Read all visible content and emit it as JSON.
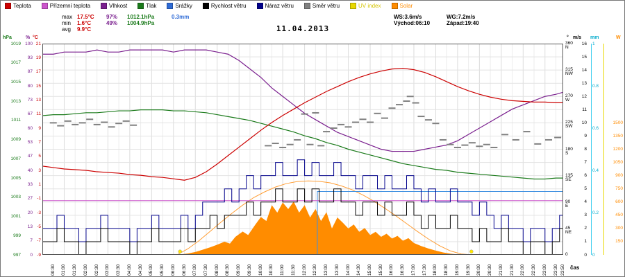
{
  "title": "11.04.2013",
  "legend": {
    "items": [
      {
        "label": "Teplota",
        "color": "#cc0000",
        "label_color": "#000000"
      },
      {
        "label": "Přízemní teplota",
        "color": "#cc55cc",
        "label_color": "#000000"
      },
      {
        "label": "Vlhkost",
        "color": "#7a1f8e",
        "label_color": "#000000"
      },
      {
        "label": "Tlak",
        "color": "#1a7a1a",
        "label_color": "#000000"
      },
      {
        "label": "Srážky",
        "color": "#2e6bd6",
        "label_color": "#000000"
      },
      {
        "label": "Rychlost větru",
        "color": "#000000",
        "label_color": "#000000"
      },
      {
        "label": "Náraz větru",
        "color": "#00008b",
        "label_color": "#000000"
      },
      {
        "label": "Směr větru",
        "color": "#808080",
        "label_color": "#000000"
      },
      {
        "label": "UV index",
        "color": "#e8d800",
        "label_color": "#d4c400"
      },
      {
        "label": "Solar",
        "color": "#ff8c00",
        "label_color": "#ff8c00"
      }
    ]
  },
  "stats": {
    "max_label": "max",
    "max_temp": "17.5°C",
    "max_hum": "97%",
    "max_pres": "1012.1hPa",
    "max_rain": "0.3mm",
    "min_label": "min",
    "min_temp": "1.6°C",
    "min_hum": "49%",
    "min_pres": "1004.9hPa",
    "avg_label": "avg",
    "avg_temp": "9.9°C",
    "ws": "WS:3.6m/s",
    "wg": "WG:7.2m/s",
    "sunrise": "Východ:06:10",
    "sunset": "Západ:19:40"
  },
  "axes": {
    "hpa_header": "hPa",
    "pct_header": "%",
    "c_header": "°C",
    "dir_header": "°",
    "ms_header": "m/s",
    "mm_header": "mm",
    "w_header": "W",
    "cas": "čas",
    "hpa_labels": [
      "1019",
      "1017",
      "1015",
      "1013",
      "1011",
      "1009",
      "1007",
      "1005",
      "1003",
      "1001",
      "999",
      "997"
    ],
    "pct_labels": [
      "100",
      "93",
      "87",
      "80",
      "73",
      "67",
      "60",
      "53",
      "47",
      "40",
      "33",
      "27",
      "20",
      "13",
      "7",
      "0"
    ],
    "c_labels": [
      "21",
      "19",
      "17",
      "15",
      "13",
      "11",
      "9",
      "7",
      "5",
      "3",
      "1",
      "-1",
      "-3",
      "-5",
      "-7",
      "-9"
    ],
    "dir_labels": [
      {
        "deg": "360",
        "pt": "N"
      },
      {
        "deg": "315",
        "pt": "NW"
      },
      {
        "deg": "270",
        "pt": "W"
      },
      {
        "deg": "225",
        "pt": "SW"
      },
      {
        "deg": "180",
        "pt": "S"
      },
      {
        "deg": "135",
        "pt": "SE"
      },
      {
        "deg": "90",
        "pt": "E"
      },
      {
        "deg": "45",
        "pt": "NE"
      },
      {
        "deg": "0",
        "pt": ""
      }
    ],
    "ms_labels": [
      "16",
      "15",
      "14",
      "13",
      "12",
      "11",
      "10",
      "9",
      "8",
      "7",
      "6",
      "5",
      "4",
      "3",
      "2",
      "1",
      "0"
    ],
    "mm_labels": [
      "1",
      "0.8",
      "0.6",
      "0.4",
      "0.2",
      "0"
    ],
    "w_labels": [
      "1500",
      "1350",
      "1200",
      "1050",
      "900",
      "750",
      "600",
      "450",
      "300",
      "150"
    ],
    "time_labels": [
      "00:30",
      "01:00",
      "01:30",
      "02:00",
      "02:30",
      "03:00",
      "03:30",
      "04:00",
      "04:30",
      "05:00",
      "05:30",
      "06:00",
      "06:30",
      "07:00",
      "07:30",
      "08:00",
      "08:30",
      "09:00",
      "09:30",
      "10:00",
      "10:30",
      "11:00",
      "11:30",
      "12:00",
      "12:30",
      "13:00",
      "13:30",
      "14:00",
      "14:30",
      "15:00",
      "15:30",
      "16:00",
      "16:30",
      "17:00",
      "17:30",
      "18:00",
      "18:30",
      "19:00",
      "19:30",
      "20:00",
      "20:30",
      "21:00",
      "21:30",
      "22:00",
      "22:30",
      "23:00",
      "23:30",
      "23:50"
    ]
  },
  "chart_data": {
    "type": "line",
    "x_unit": "minutes_of_day",
    "x_range": [
      0,
      1430
    ],
    "scales": {
      "c": {
        "min": -9,
        "max": 21
      },
      "pct": {
        "min": 0,
        "max": 100
      },
      "hpa": {
        "min": 997,
        "max": 1019
      },
      "dir": {
        "min": 0,
        "max": 360
      },
      "ms": {
        "min": 0,
        "max": 16
      },
      "w": {
        "min": 0,
        "max": 2400
      },
      "mm": {
        "min": 0,
        "max": 1
      }
    },
    "series": [
      {
        "name": "Solar",
        "color": "#ff8c00",
        "scale": "w",
        "render": "area",
        "points": [
          [
            345,
            0
          ],
          [
            380,
            6
          ],
          [
            400,
            16
          ],
          [
            420,
            32
          ],
          [
            440,
            58
          ],
          [
            460,
            85
          ],
          [
            480,
            115
          ],
          [
            500,
            150
          ],
          [
            515,
            128
          ],
          [
            530,
            205
          ],
          [
            550,
            265
          ],
          [
            565,
            225
          ],
          [
            585,
            345
          ],
          [
            600,
            430
          ],
          [
            615,
            385
          ],
          [
            630,
            565
          ],
          [
            645,
            480
          ],
          [
            660,
            595
          ],
          [
            675,
            520
          ],
          [
            690,
            605
          ],
          [
            705,
            480
          ],
          [
            720,
            565
          ],
          [
            735,
            425
          ],
          [
            750,
            520
          ],
          [
            765,
            385
          ],
          [
            780,
            485
          ],
          [
            795,
            300
          ],
          [
            810,
            425
          ],
          [
            825,
            365
          ],
          [
            840,
            300
          ],
          [
            855,
            345
          ],
          [
            870,
            262
          ],
          [
            885,
            305
          ],
          [
            900,
            225
          ],
          [
            915,
            262
          ],
          [
            930,
            205
          ],
          [
            945,
            240
          ],
          [
            960,
            185
          ],
          [
            975,
            215
          ],
          [
            990,
            160
          ],
          [
            1005,
            190
          ],
          [
            1020,
            135
          ],
          [
            1040,
            100
          ],
          [
            1060,
            72
          ],
          [
            1080,
            48
          ],
          [
            1100,
            28
          ],
          [
            1120,
            14
          ],
          [
            1140,
            5
          ],
          [
            1160,
            1
          ],
          [
            1180,
            0
          ]
        ]
      },
      {
        "name": "Solar max",
        "color": "#ff9d33",
        "scale": "w",
        "render": "line",
        "points": [
          [
            370,
            0
          ],
          [
            400,
            70
          ],
          [
            430,
            160
          ],
          [
            460,
            265
          ],
          [
            490,
            370
          ],
          [
            520,
            470
          ],
          [
            550,
            565
          ],
          [
            580,
            650
          ],
          [
            610,
            715
          ],
          [
            640,
            770
          ],
          [
            670,
            810
          ],
          [
            700,
            833
          ],
          [
            730,
            840
          ],
          [
            760,
            835
          ],
          [
            790,
            818
          ],
          [
            820,
            785
          ],
          [
            850,
            740
          ],
          [
            880,
            680
          ],
          [
            910,
            610
          ],
          [
            940,
            530
          ],
          [
            970,
            445
          ],
          [
            1000,
            355
          ],
          [
            1030,
            265
          ],
          [
            1060,
            180
          ],
          [
            1090,
            105
          ],
          [
            1120,
            45
          ],
          [
            1150,
            10
          ],
          [
            1180,
            0
          ]
        ]
      },
      {
        "name": "Srážky",
        "color": "#3d8fe0",
        "scale": "mm",
        "render": "line",
        "points": [
          [
            0,
            0
          ],
          [
            755,
            0
          ],
          [
            755,
            0.3
          ],
          [
            1430,
            0.3
          ]
        ]
      },
      {
        "name": "Přízemní teplota",
        "color": "#cc55cc",
        "scale": "c",
        "render": "line",
        "points": [
          [
            0,
            -1.3
          ],
          [
            1430,
            -1.3
          ]
        ]
      },
      {
        "name": "Tlak",
        "color": "#1a7a1a",
        "scale": "hpa",
        "render": "line",
        "step": 30,
        "width": 1.2,
        "values": [
          1011.5,
          1011.6,
          1011.6,
          1011.7,
          1011.8,
          1011.8,
          1011.9,
          1012.0,
          1012.0,
          1012.1,
          1012.1,
          1012.1,
          1012.0,
          1012.0,
          1011.9,
          1011.8,
          1011.6,
          1011.4,
          1011.2,
          1011.0,
          1010.7,
          1010.4,
          1010.1,
          1009.8,
          1009.4,
          1009.1,
          1008.7,
          1008.4,
          1008.0,
          1007.7,
          1007.4,
          1007.1,
          1006.8,
          1006.5,
          1006.3,
          1006.1,
          1005.9,
          1005.8,
          1005.6,
          1005.5,
          1005.4,
          1005.3,
          1005.2,
          1005.1,
          1005.0,
          1004.9,
          1004.9,
          1005.0,
          1005.0
        ]
      },
      {
        "name": "Vlhkost",
        "color": "#7a1f8e",
        "scale": "pct",
        "render": "line",
        "step": 30,
        "width": 1.2,
        "values": [
          95,
          95,
          96,
          96,
          96,
          97,
          96,
          96,
          97,
          97,
          97,
          97,
          96,
          97,
          97,
          97,
          96,
          95,
          92,
          88,
          84,
          79,
          75,
          71,
          67,
          64,
          61,
          58,
          56,
          54,
          52,
          50,
          49,
          49,
          49,
          50,
          51,
          52,
          54,
          57,
          60,
          63,
          66,
          69,
          71,
          73,
          75,
          76,
          77
        ]
      },
      {
        "name": "Teplota",
        "color": "#cc0000",
        "scale": "c",
        "render": "line",
        "step": 30,
        "width": 1.2,
        "values": [
          3.6,
          3.4,
          3.2,
          3.1,
          3.0,
          2.8,
          2.7,
          2.6,
          2.4,
          2.3,
          2.1,
          2.0,
          1.8,
          1.6,
          2.0,
          2.8,
          3.9,
          5.1,
          6.3,
          7.5,
          8.7,
          9.8,
          10.8,
          11.7,
          12.6,
          13.4,
          14.2,
          14.9,
          15.6,
          16.2,
          16.7,
          17.1,
          17.4,
          17.5,
          17.3,
          16.9,
          16.3,
          15.6,
          14.9,
          14.3,
          13.8,
          13.4,
          13.1,
          12.9,
          12.8,
          12.7,
          12.7,
          12.6,
          12.6
        ]
      },
      {
        "name": "Směr větru",
        "color": "#808080",
        "scale": "dir",
        "render": "dashes",
        "points": [
          [
            30,
            225
          ],
          [
            50,
            220
          ],
          [
            70,
            228
          ],
          [
            90,
            222
          ],
          [
            110,
            225
          ],
          [
            130,
            231
          ],
          [
            150,
            222
          ],
          [
            170,
            226
          ],
          [
            190,
            218
          ],
          [
            210,
            224
          ],
          [
            230,
            228
          ],
          [
            250,
            221
          ],
          [
            620,
            186
          ],
          [
            640,
            190
          ],
          [
            660,
            183
          ],
          [
            680,
            188
          ],
          [
            700,
            196
          ],
          [
            720,
            240
          ],
          [
            735,
            188
          ],
          [
            750,
            242
          ],
          [
            765,
            186
          ],
          [
            780,
            210
          ],
          [
            800,
            216
          ],
          [
            820,
            222
          ],
          [
            840,
            218
          ],
          [
            860,
            226
          ],
          [
            880,
            231
          ],
          [
            900,
            226
          ],
          [
            920,
            241
          ],
          [
            940,
            233
          ],
          [
            960,
            250
          ],
          [
            980,
            256
          ],
          [
            1000,
            262
          ],
          [
            1010,
            270
          ],
          [
            1025,
            259
          ],
          [
            1040,
            236
          ],
          [
            1060,
            230
          ],
          [
            1080,
            224
          ],
          [
            1100,
            196
          ],
          [
            1120,
            188
          ],
          [
            1140,
            183
          ],
          [
            1160,
            187
          ],
          [
            1180,
            191
          ],
          [
            1200,
            185
          ],
          [
            1220,
            188
          ],
          [
            1240,
            183
          ],
          [
            1270,
            205
          ],
          [
            1300,
            196
          ],
          [
            1330,
            210
          ],
          [
            1360,
            189
          ],
          [
            1390,
            196
          ],
          [
            1415,
            200
          ]
        ]
      },
      {
        "name": "Náraz větru",
        "color": "#00008b",
        "scale": "ms",
        "render": "step",
        "step": 20,
        "values": [
          2,
          2,
          3,
          2,
          2,
          1,
          2,
          2,
          3,
          2,
          2,
          2,
          1,
          2,
          2,
          3,
          2,
          2,
          2,
          3,
          2,
          3,
          4,
          4,
          4,
          5,
          4,
          5,
          6,
          5,
          6,
          6,
          7,
          6,
          6,
          7.2,
          6,
          7,
          6,
          6,
          7,
          6,
          6,
          5,
          6,
          6,
          5,
          6,
          5,
          5,
          6,
          5,
          4,
          5,
          4,
          4,
          5,
          4,
          4,
          3,
          4,
          3,
          2,
          3,
          2,
          2,
          1,
          2,
          2,
          1,
          2,
          3,
          7
        ]
      },
      {
        "name": "Rychlost větru",
        "color": "#000000",
        "scale": "ms",
        "render": "step",
        "step": 20,
        "values": [
          1,
          1,
          2,
          1,
          1,
          0,
          1,
          1,
          2,
          1,
          1,
          1,
          0,
          1,
          1,
          2,
          1,
          1,
          1,
          2,
          1,
          2,
          2,
          3,
          2,
          3,
          3,
          3,
          4,
          3,
          4,
          4,
          5,
          4,
          4,
          5,
          4,
          5,
          4,
          4,
          5,
          4,
          4,
          3,
          4,
          4,
          3,
          4,
          3,
          3,
          4,
          3,
          2,
          3,
          2,
          2,
          3,
          2,
          2,
          1,
          2,
          1,
          1,
          2,
          1,
          1,
          0,
          1,
          1,
          0,
          1,
          2,
          2
        ]
      },
      {
        "name": "UV index",
        "color": "#ffe600",
        "scale": "ms",
        "render": "dots",
        "points": [
          [
            378,
            0.25
          ],
          [
            1178,
            0.25
          ]
        ]
      }
    ]
  }
}
